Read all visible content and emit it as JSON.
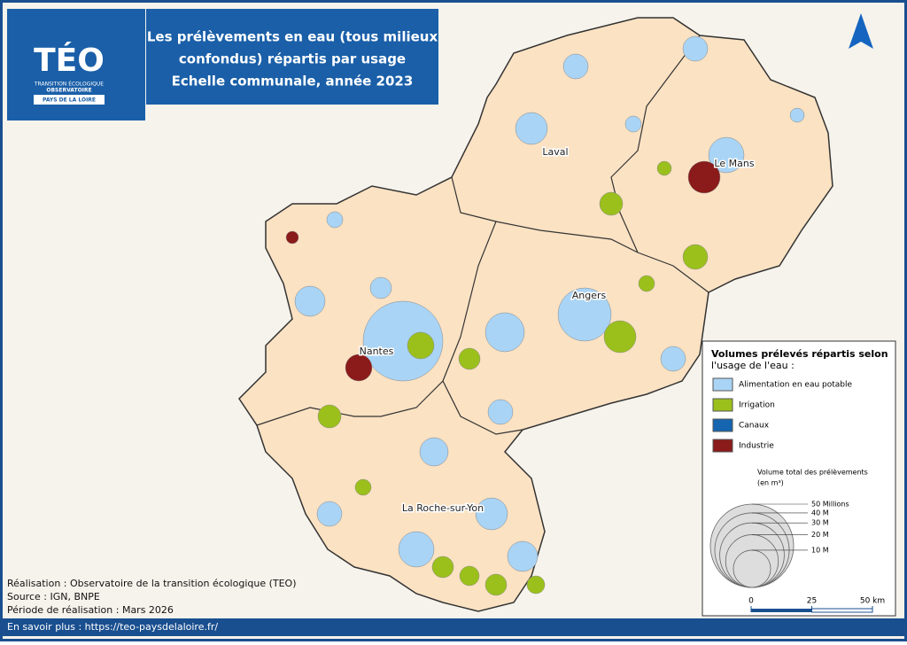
{
  "header": {
    "logo": {
      "name": "TÉO",
      "subtitle_1": "TRANSITION ÉCOLOGIQUE",
      "subtitle_2": "OBSERVATOIRE",
      "region": "PAYS DE LA LOIRE"
    },
    "title_lines": [
      "Les prélèvements en eau (tous milieux",
      "confondus) répartis par usage",
      "Echelle communale, année 2023"
    ]
  },
  "cities": [
    "Laval",
    "Le Mans",
    "Angers",
    "Nantes",
    "La Roche-sur-Yon"
  ],
  "legend": {
    "title_lines": [
      "Volumes prélevés répartis selon",
      "l'usage de l'eau :"
    ],
    "items": [
      {
        "name": "Alimentation en eau potable",
        "color": "#a9d4f5"
      },
      {
        "name": "Irrigation",
        "color": "#9bc01c"
      },
      {
        "name": "Canaux",
        "color": "#1565b0"
      },
      {
        "name": "Industrie",
        "color": "#8b1a1a"
      }
    ],
    "size_title": "Volume total des prélèvements",
    "size_unit": "(en m³)",
    "sizes": [
      {
        "value": 50000000,
        "label": "50 Millions"
      },
      {
        "value": 40000000,
        "label": "40 M"
      },
      {
        "value": 30000000,
        "label": "30 M"
      },
      {
        "value": 20000000,
        "label": "20 M"
      },
      {
        "value": 10000000,
        "label": "10 M"
      }
    ],
    "scale_ticks": [
      0,
      25,
      {
        "value": 50,
        "label": "50 km"
      }
    ]
  },
  "credits": [
    "Réalisation : Observatoire de la transition écologique (TEO)",
    "Source : IGN, BNPE",
    "Période de réalisation : Mars 2026"
  ],
  "footer": "En savoir plus : https://teo-paysdelaloire.fr/"
}
